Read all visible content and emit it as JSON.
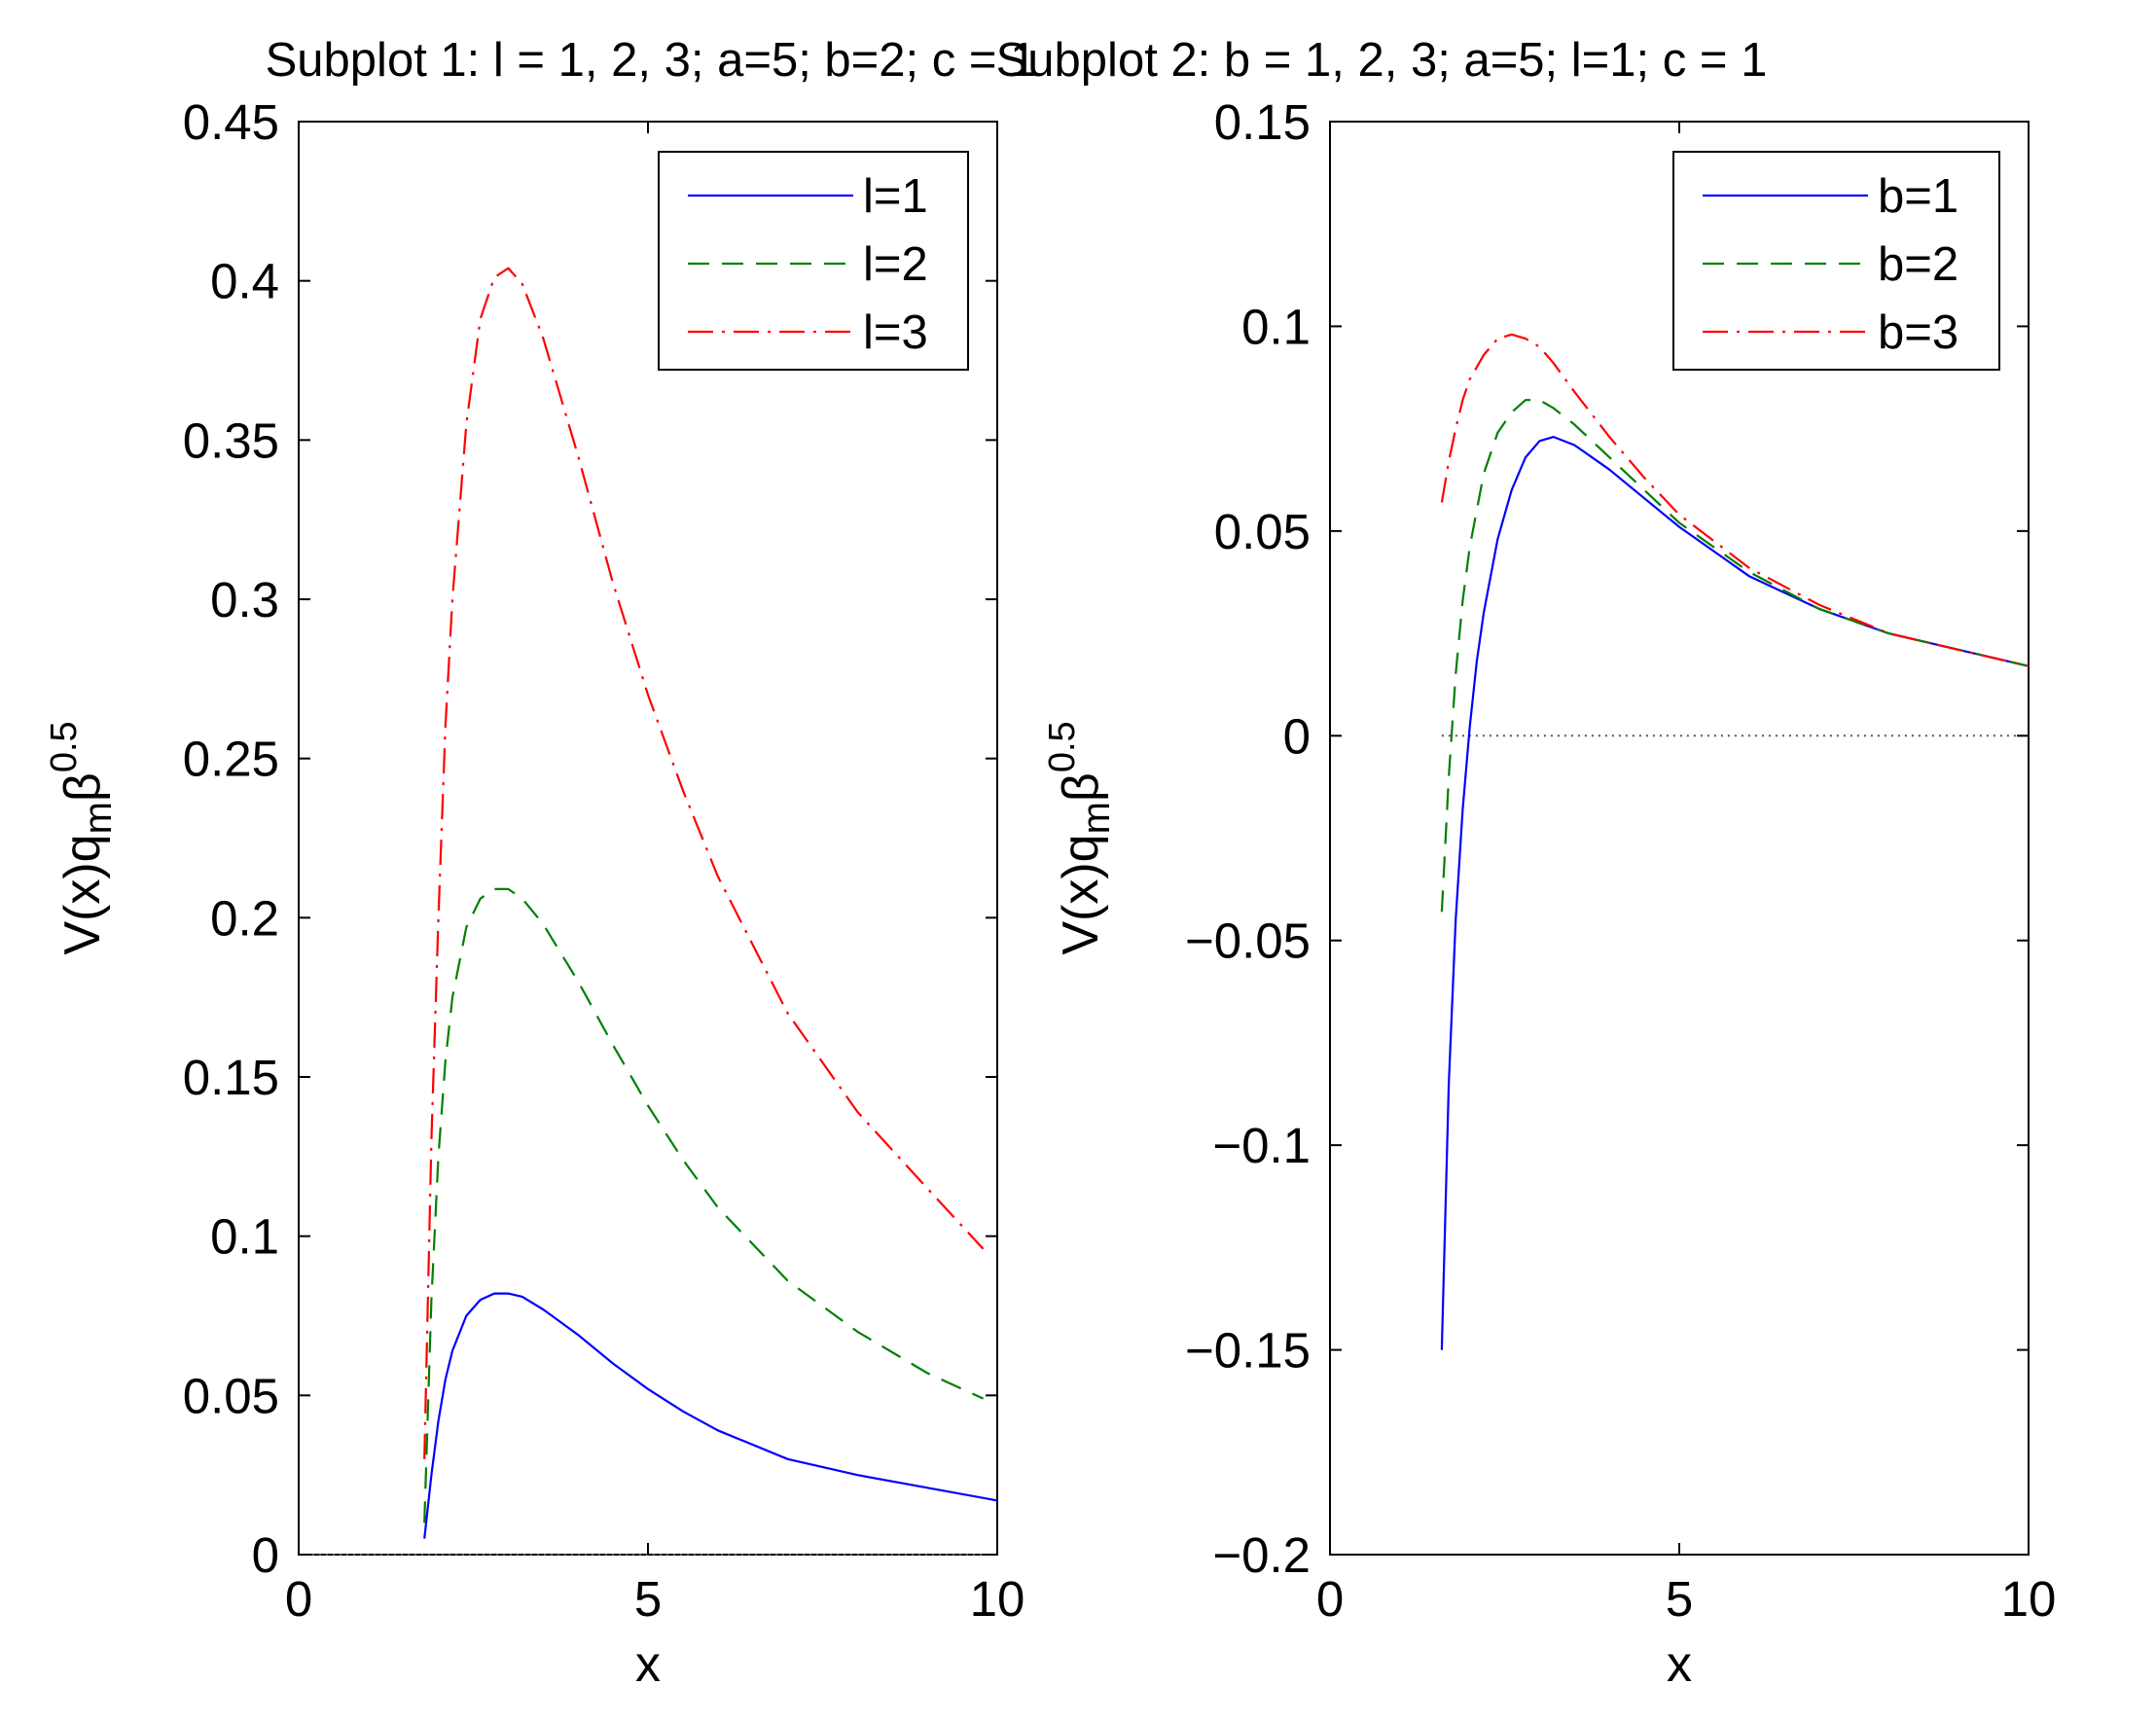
{
  "chart_data": [
    {
      "type": "line",
      "title": "Subplot 1: l = 1, 2, 3; a=5; b=2; c = 1",
      "xlabel": "x",
      "ylabel": {
        "base": "V(x)q",
        "sub": "m",
        "mid": "β",
        "sup": "0.5"
      },
      "xlim": [
        0,
        10
      ],
      "ylim": [
        0,
        0.45
      ],
      "xticks": [
        0,
        5,
        10
      ],
      "xtick_labels": [
        "0",
        "5",
        "10"
      ],
      "yticks": [
        0,
        0.05,
        0.1,
        0.15,
        0.2,
        0.25,
        0.3,
        0.35,
        0.4,
        0.45
      ],
      "ytick_labels": [
        "0",
        "0.05",
        "0.1",
        "0.15",
        "0.2",
        "0.25",
        "0.3",
        "0.35",
        "0.4",
        "0.45"
      ],
      "grid": false,
      "legend_position": "top-right",
      "zero_line": true,
      "series": [
        {
          "name": "l=1",
          "color": "#0000ff",
          "style": "solid",
          "x": [
            1.8,
            1.9,
            2.0,
            2.1,
            2.2,
            2.4,
            2.6,
            2.8,
            3.0,
            3.2,
            3.5,
            4.0,
            4.5,
            5.0,
            5.5,
            6.0,
            7.0,
            8.0,
            9.0,
            10.0
          ],
          "values": [
            0.005,
            0.025,
            0.042,
            0.055,
            0.064,
            0.075,
            0.08,
            0.082,
            0.082,
            0.081,
            0.077,
            0.069,
            0.06,
            0.052,
            0.045,
            0.039,
            0.03,
            0.025,
            0.021,
            0.017
          ]
        },
        {
          "name": "l=2",
          "color": "#007f00",
          "style": "dashed",
          "x": [
            1.8,
            1.9,
            2.0,
            2.1,
            2.2,
            2.4,
            2.6,
            2.8,
            3.0,
            3.2,
            3.5,
            4.0,
            4.5,
            5.0,
            5.5,
            6.0,
            7.0,
            8.0,
            9.0,
            9.8
          ],
          "values": [
            0.01,
            0.08,
            0.125,
            0.155,
            0.175,
            0.197,
            0.206,
            0.209,
            0.209,
            0.206,
            0.198,
            0.18,
            0.16,
            0.141,
            0.124,
            0.109,
            0.086,
            0.07,
            0.057,
            0.049
          ]
        },
        {
          "name": "l=3",
          "color": "#ff0000",
          "style": "dashdot",
          "x": [
            1.8,
            1.9,
            2.0,
            2.1,
            2.2,
            2.4,
            2.6,
            2.8,
            3.0,
            3.2,
            3.5,
            4.0,
            4.5,
            5.0,
            5.5,
            6.0,
            7.0,
            8.0,
            9.0,
            9.8
          ],
          "values": [
            0.03,
            0.13,
            0.2,
            0.26,
            0.3,
            0.355,
            0.388,
            0.401,
            0.404,
            0.399,
            0.382,
            0.345,
            0.305,
            0.27,
            0.24,
            0.213,
            0.17,
            0.139,
            0.115,
            0.096
          ]
        }
      ]
    },
    {
      "type": "line",
      "title": "Subplot 2: b = 1, 2, 3; a=5; l=1; c = 1",
      "xlabel": "x",
      "ylabel": {
        "base": "V(x)q",
        "sub": "m",
        "mid": "β",
        "sup": "0.5"
      },
      "xlim": [
        0,
        10
      ],
      "ylim": [
        -0.2,
        0.15
      ],
      "xticks": [
        0,
        5,
        10
      ],
      "xtick_labels": [
        "0",
        "5",
        "10"
      ],
      "yticks": [
        -0.2,
        -0.15,
        -0.1,
        -0.05,
        0,
        0.05,
        0.1,
        0.15
      ],
      "ytick_labels": [
        "−0.2",
        "−0.15",
        "−0.1",
        "−0.05",
        "0",
        "0.05",
        "0.1",
        "0.15"
      ],
      "grid": false,
      "legend_position": "top-right",
      "zero_line": true,
      "series": [
        {
          "name": "b=1",
          "color": "#0000ff",
          "style": "solid",
          "x": [
            1.6,
            1.7,
            1.8,
            1.9,
            2.0,
            2.1,
            2.2,
            2.4,
            2.6,
            2.8,
            3.0,
            3.2,
            3.5,
            4.0,
            4.5,
            5.0,
            5.5,
            6.0,
            7.0,
            8.0,
            9.0,
            10.0
          ],
          "values": [
            -0.15,
            -0.085,
            -0.045,
            -0.018,
            0.002,
            0.018,
            0.03,
            0.048,
            0.06,
            0.068,
            0.072,
            0.073,
            0.071,
            0.065,
            0.058,
            0.051,
            0.045,
            0.039,
            0.031,
            0.025,
            0.021,
            0.017
          ]
        },
        {
          "name": "b=2",
          "color": "#007f00",
          "style": "dashed",
          "x": [
            1.6,
            1.7,
            1.8,
            1.9,
            2.0,
            2.2,
            2.4,
            2.6,
            2.8,
            3.0,
            3.2,
            3.5,
            4.0,
            4.5,
            5.0,
            6.0,
            7.0,
            8.0,
            9.0,
            10.0
          ],
          "values": [
            -0.043,
            -0.01,
            0.015,
            0.033,
            0.046,
            0.064,
            0.074,
            0.079,
            0.082,
            0.082,
            0.08,
            0.076,
            0.068,
            0.06,
            0.052,
            0.04,
            0.031,
            0.025,
            0.021,
            0.017
          ]
        },
        {
          "name": "b=3",
          "color": "#ff0000",
          "style": "dashdot",
          "x": [
            1.6,
            1.7,
            1.8,
            1.9,
            2.0,
            2.2,
            2.4,
            2.6,
            2.8,
            3.0,
            3.2,
            3.5,
            4.0,
            4.5,
            5.0,
            6.0,
            7.0,
            8.0,
            9.0,
            10.0
          ],
          "values": [
            0.057,
            0.067,
            0.075,
            0.082,
            0.087,
            0.093,
            0.097,
            0.098,
            0.097,
            0.095,
            0.091,
            0.084,
            0.073,
            0.063,
            0.054,
            0.041,
            0.032,
            0.025,
            0.021,
            0.017
          ]
        }
      ]
    }
  ]
}
